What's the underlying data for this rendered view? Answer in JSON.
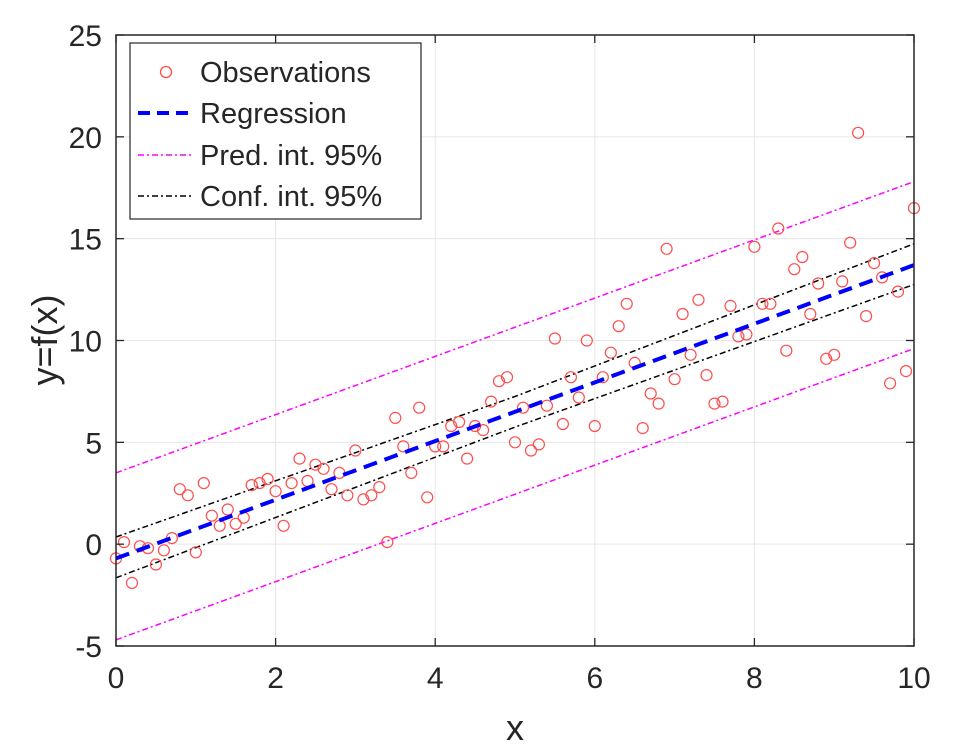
{
  "chart_data": {
    "type": "scatter",
    "title": "",
    "xlabel": "x",
    "ylabel": "y=f(x)",
    "xlim": [
      0,
      10
    ],
    "ylim": [
      -5,
      25
    ],
    "xticks": [
      "0",
      "2",
      "4",
      "6",
      "8",
      "10"
    ],
    "yticks": [
      "-5",
      "0",
      "5",
      "10",
      "15",
      "20",
      "25"
    ],
    "grid": true,
    "legend_position": "top-left",
    "colors": {
      "observations": "#ff4d4d",
      "regression": "#0000ff",
      "prediction": "#ff00ff",
      "confidence": "#000000",
      "grid": "#e6e6e6"
    },
    "series": [
      {
        "name": "Observations",
        "type": "scatter",
        "x": [
          0.0,
          0.1,
          0.2,
          0.3,
          0.4,
          0.5,
          0.6,
          0.7,
          0.8,
          0.9,
          1.0,
          1.1,
          1.2,
          1.3,
          1.4,
          1.5,
          1.6,
          1.7,
          1.8,
          1.9,
          2.0,
          2.1,
          2.2,
          2.3,
          2.4,
          2.5,
          2.6,
          2.7,
          2.8,
          2.9,
          3.0,
          3.1,
          3.2,
          3.3,
          3.4,
          3.5,
          3.6,
          3.7,
          3.8,
          3.9,
          4.0,
          4.1,
          4.2,
          4.3,
          4.4,
          4.5,
          4.6,
          4.7,
          4.8,
          4.9,
          5.0,
          5.1,
          5.2,
          5.3,
          5.4,
          5.5,
          5.6,
          5.7,
          5.8,
          5.9,
          6.0,
          6.1,
          6.2,
          6.3,
          6.4,
          6.5,
          6.6,
          6.7,
          6.8,
          6.9,
          7.0,
          7.1,
          7.2,
          7.3,
          7.4,
          7.5,
          7.6,
          7.7,
          7.8,
          7.9,
          8.0,
          8.1,
          8.2,
          8.3,
          8.4,
          8.5,
          8.6,
          8.7,
          8.8,
          8.9,
          9.0,
          9.1,
          9.2,
          9.3,
          9.4,
          9.5,
          9.6,
          9.7,
          9.8,
          9.9,
          10.0
        ],
        "y": [
          -0.7,
          0.1,
          -1.9,
          -0.1,
          -0.2,
          -1.0,
          -0.3,
          0.3,
          2.7,
          2.4,
          -0.4,
          3.0,
          1.4,
          0.9,
          1.7,
          1.0,
          1.3,
          2.9,
          3.0,
          3.2,
          2.6,
          0.9,
          3.0,
          4.2,
          3.1,
          3.9,
          3.7,
          2.7,
          3.5,
          2.4,
          4.6,
          2.2,
          2.4,
          2.8,
          0.1,
          6.2,
          4.8,
          3.5,
          6.7,
          2.3,
          4.8,
          4.8,
          5.8,
          6.0,
          4.2,
          5.8,
          5.6,
          7.0,
          8.0,
          8.2,
          5.0,
          6.7,
          4.6,
          4.9,
          6.8,
          10.1,
          5.9,
          8.2,
          7.2,
          10.0,
          5.8,
          8.2,
          9.4,
          10.7,
          11.8,
          8.9,
          5.7,
          7.4,
          6.9,
          14.5,
          8.1,
          11.3,
          9.3,
          12.0,
          8.3,
          6.9,
          7.0,
          11.7,
          10.2,
          10.3,
          14.6,
          11.8,
          11.8,
          15.5,
          9.5,
          13.5,
          14.1,
          11.3,
          12.8,
          9.1,
          9.3,
          12.9,
          14.8,
          20.2,
          11.2,
          13.8,
          13.1,
          7.9,
          12.4,
          8.5,
          16.5
        ]
      },
      {
        "name": "Regression",
        "type": "line",
        "x": [
          0,
          10
        ],
        "y": [
          -0.7,
          13.7
        ]
      },
      {
        "name": "Pred. int. 95%",
        "type": "line",
        "x": [
          0,
          10
        ],
        "y": [
          3.5,
          17.8
        ],
        "lower": [
          -4.7,
          9.6
        ]
      },
      {
        "name": "Conf. int. 95%",
        "type": "line",
        "x": [
          0,
          5,
          10
        ],
        "y": [
          0.35,
          7.25,
          14.75
        ],
        "lower": [
          -1.65,
          5.75,
          12.75
        ]
      }
    ]
  }
}
